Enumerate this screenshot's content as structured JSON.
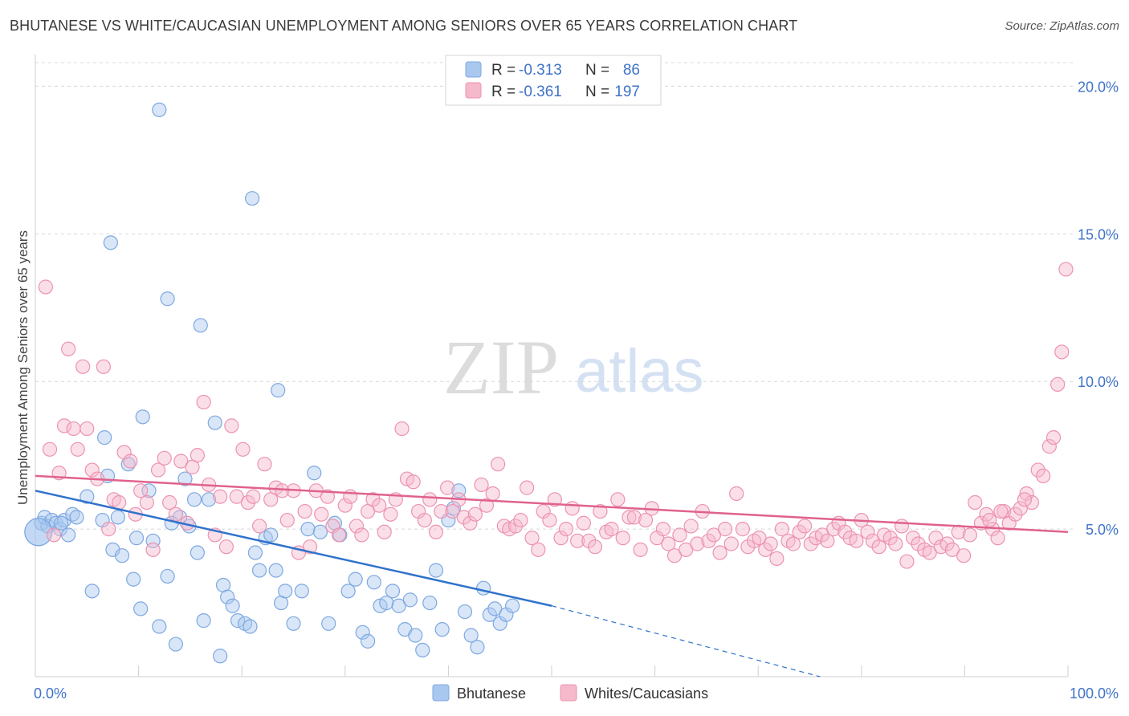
{
  "header": {
    "title": "BHUTANESE VS WHITE/CAUCASIAN UNEMPLOYMENT AMONG SENIORS OVER 65 YEARS CORRELATION CHART",
    "source": "Source: ZipAtlas.com"
  },
  "watermark": {
    "zip": "ZIP",
    "atlas": "atlas"
  },
  "colors": {
    "blue_fill": "#a9c8ef",
    "blue_stroke": "#7ea8e0",
    "blue_line": "#2f72cc",
    "pink_fill": "#f6b8cb",
    "pink_stroke": "#ec93b0",
    "pink_line": "#e0628d",
    "grid": "#d8d8d8",
    "tick_text": "#3f73c9"
  },
  "legend": {
    "r_label": "R =",
    "n_label": "N =",
    "rows": [
      {
        "series": "Bhutanese",
        "r_value": "-0.313",
        "n_value": "86"
      },
      {
        "series": "Whites/Caucasians",
        "r_value": "-0.361",
        "n_value": "197"
      }
    ]
  },
  "chart_data": {
    "type": "scatter",
    "title": "BHUTANESE VS WHITE/CAUCASIAN UNEMPLOYMENT AMONG SENIORS OVER 65 YEARS CORRELATION CHART",
    "xlabel": "",
    "ylabel": "Unemployment Among Seniors over 65 years",
    "xlim": [
      0,
      100
    ],
    "ylim": [
      0,
      20.8
    ],
    "x_tick_labels": [
      {
        "value": 0,
        "label": "0.0%"
      },
      {
        "value": 100,
        "label": "100.0%"
      }
    ],
    "y_ticks": [
      {
        "value": 5,
        "label": "5.0%"
      },
      {
        "value": 10,
        "label": "10.0%"
      },
      {
        "value": 15,
        "label": "15.0%"
      },
      {
        "value": 20,
        "label": "20.0%"
      }
    ],
    "legend_position": "top-center",
    "series": [
      {
        "name": "Bhutanese",
        "r": -0.313,
        "n": 86,
        "trend": {
          "x0": 0,
          "y0": 6.3,
          "x1": 50,
          "y1": 2.4,
          "dashed_to_x": 76,
          "dashed_to_y": 0
        },
        "points": [
          [
            0.3,
            4.9
          ],
          [
            0.6,
            5.2
          ],
          [
            0.9,
            5.4
          ],
          [
            1.2,
            5.1
          ],
          [
            1.6,
            5.3
          ],
          [
            2.0,
            5.2
          ],
          [
            2.4,
            5.0
          ],
          [
            2.8,
            5.3
          ],
          [
            3.2,
            4.8
          ],
          [
            3.6,
            5.5
          ],
          [
            4.0,
            5.4
          ],
          [
            5.0,
            6.1
          ],
          [
            5.5,
            2.9
          ],
          [
            6.5,
            5.3
          ],
          [
            7.0,
            6.8
          ],
          [
            7.5,
            4.3
          ],
          [
            8.0,
            5.4
          ],
          [
            8.4,
            4.1
          ],
          [
            9.0,
            7.2
          ],
          [
            9.5,
            3.3
          ],
          [
            9.8,
            4.7
          ],
          [
            10.2,
            2.3
          ],
          [
            11.0,
            6.3
          ],
          [
            11.4,
            4.6
          ],
          [
            12.0,
            1.7
          ],
          [
            12.8,
            3.4
          ],
          [
            13.2,
            5.2
          ],
          [
            13.6,
            1.1
          ],
          [
            14.0,
            5.4
          ],
          [
            14.5,
            6.7
          ],
          [
            14.9,
            5.1
          ],
          [
            15.4,
            6.0
          ],
          [
            15.7,
            4.2
          ],
          [
            16.3,
            1.9
          ],
          [
            16.8,
            6.0
          ],
          [
            17.4,
            8.6
          ],
          [
            17.9,
            0.7
          ],
          [
            18.2,
            3.1
          ],
          [
            18.6,
            2.7
          ],
          [
            19.1,
            2.4
          ],
          [
            19.6,
            1.9
          ],
          [
            20.3,
            1.8
          ],
          [
            20.8,
            1.7
          ],
          [
            21.3,
            4.2
          ],
          [
            21.7,
            3.6
          ],
          [
            22.3,
            4.7
          ],
          [
            22.8,
            4.8
          ],
          [
            23.3,
            3.6
          ],
          [
            23.8,
            2.5
          ],
          [
            24.2,
            2.9
          ],
          [
            25.0,
            1.8
          ],
          [
            25.8,
            2.9
          ],
          [
            26.4,
            5.0
          ],
          [
            27.0,
            6.9
          ],
          [
            27.6,
            4.9
          ],
          [
            28.4,
            1.8
          ],
          [
            29.0,
            5.2
          ],
          [
            29.5,
            4.8
          ],
          [
            30.3,
            2.9
          ],
          [
            31.0,
            3.3
          ],
          [
            31.7,
            1.5
          ],
          [
            32.2,
            1.2
          ],
          [
            32.8,
            3.2
          ],
          [
            33.4,
            2.4
          ],
          [
            34.0,
            2.5
          ],
          [
            34.6,
            2.9
          ],
          [
            35.2,
            2.4
          ],
          [
            35.8,
            1.6
          ],
          [
            36.3,
            2.6
          ],
          [
            36.8,
            1.4
          ],
          [
            37.5,
            0.9
          ],
          [
            38.2,
            2.5
          ],
          [
            38.8,
            3.6
          ],
          [
            39.4,
            1.6
          ],
          [
            40.0,
            5.3
          ],
          [
            40.5,
            5.7
          ],
          [
            41.0,
            6.3
          ],
          [
            41.6,
            2.2
          ],
          [
            42.2,
            1.4
          ],
          [
            42.8,
            1.0
          ],
          [
            43.4,
            3.0
          ],
          [
            44.0,
            2.1
          ],
          [
            44.5,
            2.3
          ],
          [
            45.0,
            1.8
          ],
          [
            45.6,
            2.1
          ],
          [
            46.2,
            2.4
          ]
        ],
        "highlight_points": [
          [
            0.3,
            4.9
          ],
          [
            2.5,
            5.2
          ],
          [
            12.0,
            19.2
          ],
          [
            21.0,
            16.2
          ],
          [
            7.3,
            14.7
          ],
          [
            12.8,
            12.8
          ],
          [
            16.0,
            11.9
          ],
          [
            23.5,
            9.7
          ],
          [
            10.4,
            8.8
          ],
          [
            6.7,
            8.1
          ]
        ]
      },
      {
        "name": "Whites/Caucasians",
        "r": -0.361,
        "n": 197,
        "trend": {
          "x0": 0,
          "y0": 6.8,
          "x1": 100,
          "y1": 4.9
        },
        "points": [
          [
            1.0,
            13.2
          ],
          [
            1.4,
            7.7
          ],
          [
            1.8,
            4.8
          ],
          [
            2.3,
            6.9
          ],
          [
            2.8,
            8.5
          ],
          [
            3.2,
            11.1
          ],
          [
            3.7,
            8.4
          ],
          [
            4.1,
            7.7
          ],
          [
            4.6,
            10.5
          ],
          [
            5.0,
            8.4
          ],
          [
            5.5,
            7.0
          ],
          [
            6.0,
            6.7
          ],
          [
            6.6,
            10.5
          ],
          [
            7.1,
            5.0
          ],
          [
            7.6,
            6.0
          ],
          [
            8.1,
            5.9
          ],
          [
            8.6,
            7.6
          ],
          [
            9.2,
            7.3
          ],
          [
            9.7,
            5.5
          ],
          [
            10.2,
            6.3
          ],
          [
            10.8,
            5.9
          ],
          [
            11.4,
            4.3
          ],
          [
            11.9,
            7.0
          ],
          [
            12.5,
            7.4
          ],
          [
            13.0,
            5.9
          ],
          [
            13.6,
            5.5
          ],
          [
            14.1,
            7.3
          ],
          [
            14.7,
            5.2
          ],
          [
            15.2,
            7.1
          ],
          [
            15.7,
            7.5
          ],
          [
            16.3,
            9.3
          ],
          [
            16.8,
            6.5
          ],
          [
            17.4,
            4.8
          ],
          [
            17.9,
            6.1
          ],
          [
            18.5,
            4.4
          ],
          [
            19.0,
            8.5
          ],
          [
            19.5,
            6.1
          ],
          [
            20.1,
            7.7
          ],
          [
            20.6,
            5.9
          ],
          [
            21.1,
            6.1
          ],
          [
            21.7,
            5.1
          ],
          [
            22.2,
            7.2
          ],
          [
            22.8,
            6.0
          ],
          [
            23.3,
            6.4
          ],
          [
            23.9,
            6.3
          ],
          [
            24.4,
            5.3
          ],
          [
            25.0,
            6.3
          ],
          [
            25.5,
            4.2
          ],
          [
            26.1,
            5.6
          ],
          [
            26.6,
            4.4
          ],
          [
            27.2,
            6.3
          ],
          [
            27.7,
            5.5
          ],
          [
            28.3,
            6.1
          ],
          [
            28.8,
            5.1
          ],
          [
            29.4,
            4.8
          ],
          [
            30.0,
            5.8
          ],
          [
            30.5,
            6.1
          ],
          [
            31.1,
            5.1
          ],
          [
            31.6,
            4.8
          ],
          [
            32.2,
            5.6
          ],
          [
            32.7,
            6.0
          ],
          [
            33.3,
            5.8
          ],
          [
            33.8,
            4.9
          ],
          [
            34.4,
            5.5
          ],
          [
            34.9,
            6.0
          ],
          [
            35.5,
            8.4
          ],
          [
            36.0,
            6.7
          ],
          [
            36.6,
            6.6
          ],
          [
            37.1,
            5.6
          ],
          [
            37.7,
            5.3
          ],
          [
            38.2,
            6.0
          ],
          [
            38.8,
            4.9
          ],
          [
            39.3,
            5.6
          ],
          [
            39.9,
            6.4
          ],
          [
            40.4,
            5.6
          ],
          [
            41.0,
            6.0
          ],
          [
            41.5,
            5.4
          ],
          [
            42.1,
            5.2
          ],
          [
            42.6,
            5.5
          ],
          [
            43.2,
            6.5
          ],
          [
            43.7,
            5.8
          ],
          [
            44.3,
            6.2
          ],
          [
            44.8,
            7.2
          ],
          [
            45.4,
            5.1
          ],
          [
            45.9,
            5.0
          ],
          [
            46.5,
            5.1
          ],
          [
            47.0,
            5.3
          ],
          [
            47.6,
            6.4
          ],
          [
            48.1,
            4.7
          ],
          [
            48.7,
            4.3
          ],
          [
            49.2,
            5.6
          ],
          [
            49.8,
            5.3
          ],
          [
            50.3,
            6.0
          ],
          [
            50.9,
            4.7
          ],
          [
            51.4,
            5.0
          ],
          [
            52.0,
            5.7
          ],
          [
            52.5,
            4.6
          ],
          [
            53.1,
            5.2
          ],
          [
            53.6,
            4.6
          ],
          [
            54.2,
            4.4
          ],
          [
            54.7,
            5.6
          ],
          [
            55.3,
            4.9
          ],
          [
            55.8,
            5.0
          ],
          [
            56.4,
            6.0
          ],
          [
            56.9,
            4.7
          ],
          [
            57.5,
            5.4
          ],
          [
            58.0,
            5.4
          ],
          [
            58.6,
            4.3
          ],
          [
            59.1,
            5.3
          ],
          [
            59.7,
            5.7
          ],
          [
            60.2,
            4.7
          ],
          [
            60.8,
            5.0
          ],
          [
            61.3,
            4.5
          ],
          [
            61.9,
            4.1
          ],
          [
            62.4,
            4.8
          ],
          [
            63.0,
            4.3
          ],
          [
            63.5,
            5.1
          ],
          [
            64.1,
            4.5
          ],
          [
            64.6,
            5.6
          ],
          [
            65.2,
            4.6
          ],
          [
            65.7,
            4.8
          ],
          [
            66.3,
            4.2
          ],
          [
            66.8,
            5.0
          ],
          [
            67.4,
            4.5
          ],
          [
            67.9,
            6.2
          ],
          [
            68.5,
            5.0
          ],
          [
            69.0,
            4.4
          ],
          [
            69.6,
            4.6
          ],
          [
            70.1,
            4.7
          ],
          [
            70.7,
            4.3
          ],
          [
            71.2,
            4.5
          ],
          [
            71.8,
            4.0
          ],
          [
            72.3,
            5.0
          ],
          [
            72.9,
            4.6
          ],
          [
            73.4,
            4.5
          ],
          [
            74.0,
            4.9
          ],
          [
            74.5,
            5.1
          ],
          [
            75.1,
            4.5
          ],
          [
            75.6,
            4.7
          ],
          [
            76.2,
            4.8
          ],
          [
            76.7,
            4.6
          ],
          [
            77.3,
            5.0
          ],
          [
            77.8,
            5.2
          ],
          [
            78.4,
            4.9
          ],
          [
            78.9,
            4.7
          ],
          [
            79.5,
            4.6
          ],
          [
            80.0,
            5.3
          ],
          [
            80.6,
            4.9
          ],
          [
            81.1,
            4.6
          ],
          [
            81.7,
            4.4
          ],
          [
            82.2,
            4.8
          ],
          [
            82.8,
            4.7
          ],
          [
            83.3,
            4.5
          ],
          [
            83.9,
            5.1
          ],
          [
            84.4,
            3.9
          ],
          [
            85.0,
            4.7
          ],
          [
            85.5,
            4.5
          ],
          [
            86.1,
            4.3
          ],
          [
            86.6,
            4.2
          ],
          [
            87.2,
            4.7
          ],
          [
            87.7,
            4.4
          ],
          [
            88.3,
            4.5
          ],
          [
            88.8,
            4.3
          ],
          [
            89.4,
            4.9
          ],
          [
            89.9,
            4.1
          ],
          [
            90.5,
            4.8
          ],
          [
            91.0,
            5.9
          ],
          [
            91.6,
            5.2
          ],
          [
            92.1,
            5.5
          ],
          [
            92.7,
            5.0
          ],
          [
            93.2,
            4.7
          ],
          [
            93.8,
            5.6
          ],
          [
            94.3,
            5.2
          ],
          [
            94.9,
            5.5
          ],
          [
            95.4,
            5.7
          ],
          [
            96.0,
            6.2
          ],
          [
            96.5,
            5.9
          ],
          [
            97.1,
            7.0
          ],
          [
            97.6,
            6.8
          ],
          [
            98.2,
            7.8
          ],
          [
            98.6,
            8.1
          ],
          [
            99.0,
            9.9
          ],
          [
            99.4,
            11.0
          ],
          [
            99.8,
            13.8
          ],
          [
            93.5,
            5.6
          ],
          [
            95.8,
            6.0
          ],
          [
            92.4,
            5.3
          ]
        ]
      }
    ]
  },
  "bottom_legend": [
    {
      "label": "Bhutanese"
    },
    {
      "label": "Whites/Caucasians"
    }
  ]
}
